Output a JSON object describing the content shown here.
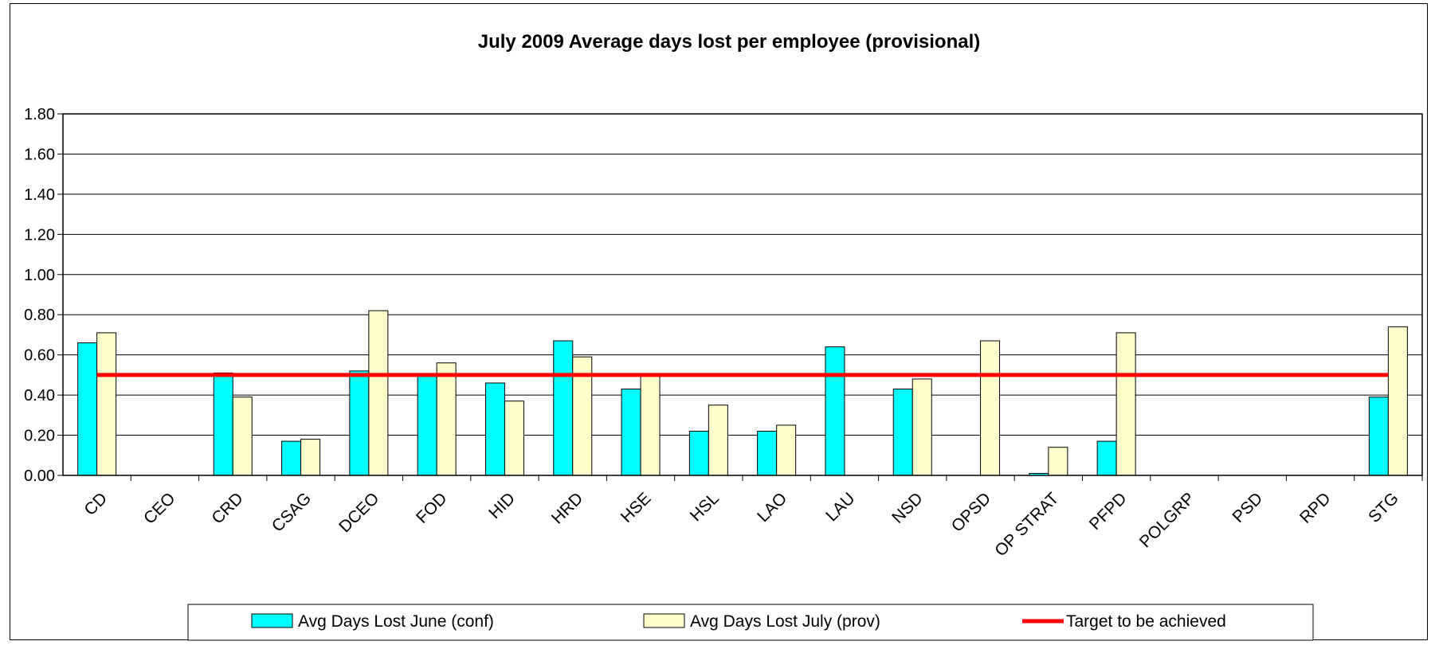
{
  "chart_data": {
    "type": "bar",
    "title": "July 2009 Average days lost per employee (provisional)",
    "xlabel": "",
    "ylabel": "",
    "ylim": [
      0,
      1.8
    ],
    "yticks": [
      "0.00",
      "0.20",
      "0.40",
      "0.60",
      "0.80",
      "1.00",
      "1.20",
      "1.40",
      "1.60",
      "1.80"
    ],
    "grid": true,
    "legend_position": "bottom",
    "categories": [
      "CD",
      "CEO",
      "CRD",
      "CSAG",
      "DCEO",
      "FOD",
      "HID",
      "HRD",
      "HSE",
      "HSL",
      "LAO",
      "LAU",
      "NSD",
      "OPSD",
      "OP STRAT",
      "PFPD",
      "POLGRP",
      "PSD",
      "RPD",
      "STG"
    ],
    "series": [
      {
        "name": "Avg Days Lost June (conf)",
        "color": "#00ffff",
        "values": [
          0.66,
          0,
          0.51,
          0.17,
          0.52,
          0.5,
          0.46,
          0.67,
          0.43,
          0.22,
          0.22,
          0.64,
          0.43,
          0,
          0.01,
          0.17,
          0,
          0,
          0,
          0.39
        ]
      },
      {
        "name": "Avg Days Lost July (prov)",
        "color": "#ffffcc",
        "values": [
          0.71,
          0,
          0.39,
          0.18,
          0.82,
          0.56,
          0.37,
          0.59,
          0.5,
          0.35,
          0.25,
          0,
          0.48,
          0.67,
          0.14,
          0.71,
          0,
          0,
          0,
          0.74
        ]
      }
    ],
    "target": {
      "name": "Target to be achieved",
      "value": 0.5,
      "color": "#ff0000"
    }
  }
}
